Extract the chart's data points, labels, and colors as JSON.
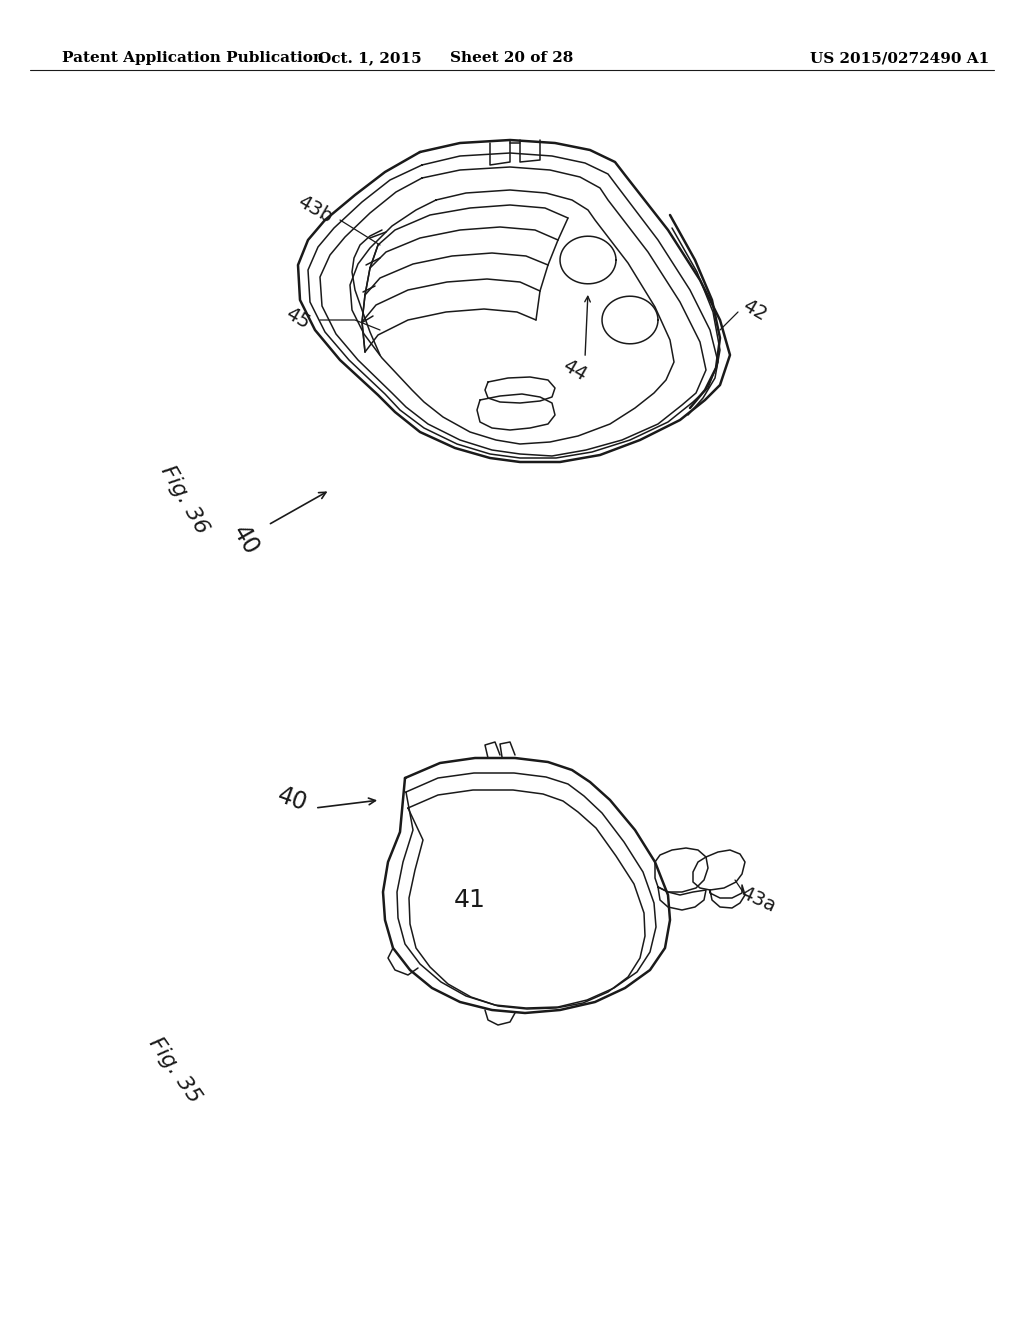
{
  "background_color": "#ffffff",
  "header": {
    "left": "Patent Application Publication",
    "center_date": "Oct. 1, 2015",
    "center_sheet": "Sheet 20 of 28",
    "right": "US 2015/0272490 A1",
    "fontsize": 11
  }
}
